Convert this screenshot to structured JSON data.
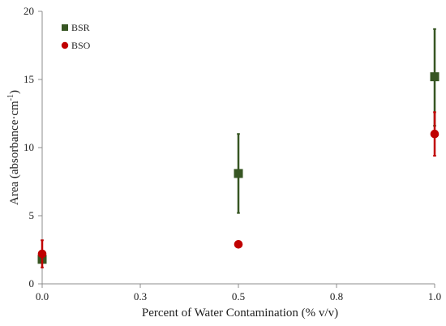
{
  "chart_data": {
    "type": "scatter",
    "xlabel": "Percent of Water Contamination (% v/v)",
    "ylabel": "Area (absorbance·cm",
    "ylabel_sup": "-1",
    "ylabel_close": ")",
    "xlim": [
      0,
      1
    ],
    "ylim": [
      0,
      20
    ],
    "x_ticks": [
      {
        "value": 0.0,
        "label": "0.0"
      },
      {
        "value": 0.25,
        "label": "0.3"
      },
      {
        "value": 0.5,
        "label": "0.5"
      },
      {
        "value": 0.75,
        "label": "0.8"
      },
      {
        "value": 1.0,
        "label": "1.0"
      }
    ],
    "y_ticks": [
      {
        "value": 0,
        "label": "0"
      },
      {
        "value": 5,
        "label": "5"
      },
      {
        "value": 10,
        "label": "10"
      },
      {
        "value": 15,
        "label": "15"
      },
      {
        "value": 20,
        "label": "20"
      }
    ],
    "grid": false,
    "legend_position": "top-left",
    "series": [
      {
        "name": "BSR",
        "marker": "square",
        "color": "#375623",
        "points": [
          {
            "x": 0.0,
            "y": 1.8,
            "err_low": 1.6,
            "err_high": 2.0
          },
          {
            "x": 0.5,
            "y": 8.1,
            "err_low": 5.2,
            "err_high": 11.0
          },
          {
            "x": 1.0,
            "y": 15.2,
            "err_low": 11.6,
            "err_high": 18.7
          }
        ]
      },
      {
        "name": "BSO",
        "marker": "circle",
        "color": "#C00000",
        "points": [
          {
            "x": 0.0,
            "y": 2.2,
            "err_low": 1.2,
            "err_high": 3.2
          },
          {
            "x": 0.5,
            "y": 2.9,
            "err_low": 2.8,
            "err_high": 3.0
          },
          {
            "x": 1.0,
            "y": 11.0,
            "err_low": 9.4,
            "err_high": 12.6
          }
        ]
      }
    ]
  }
}
